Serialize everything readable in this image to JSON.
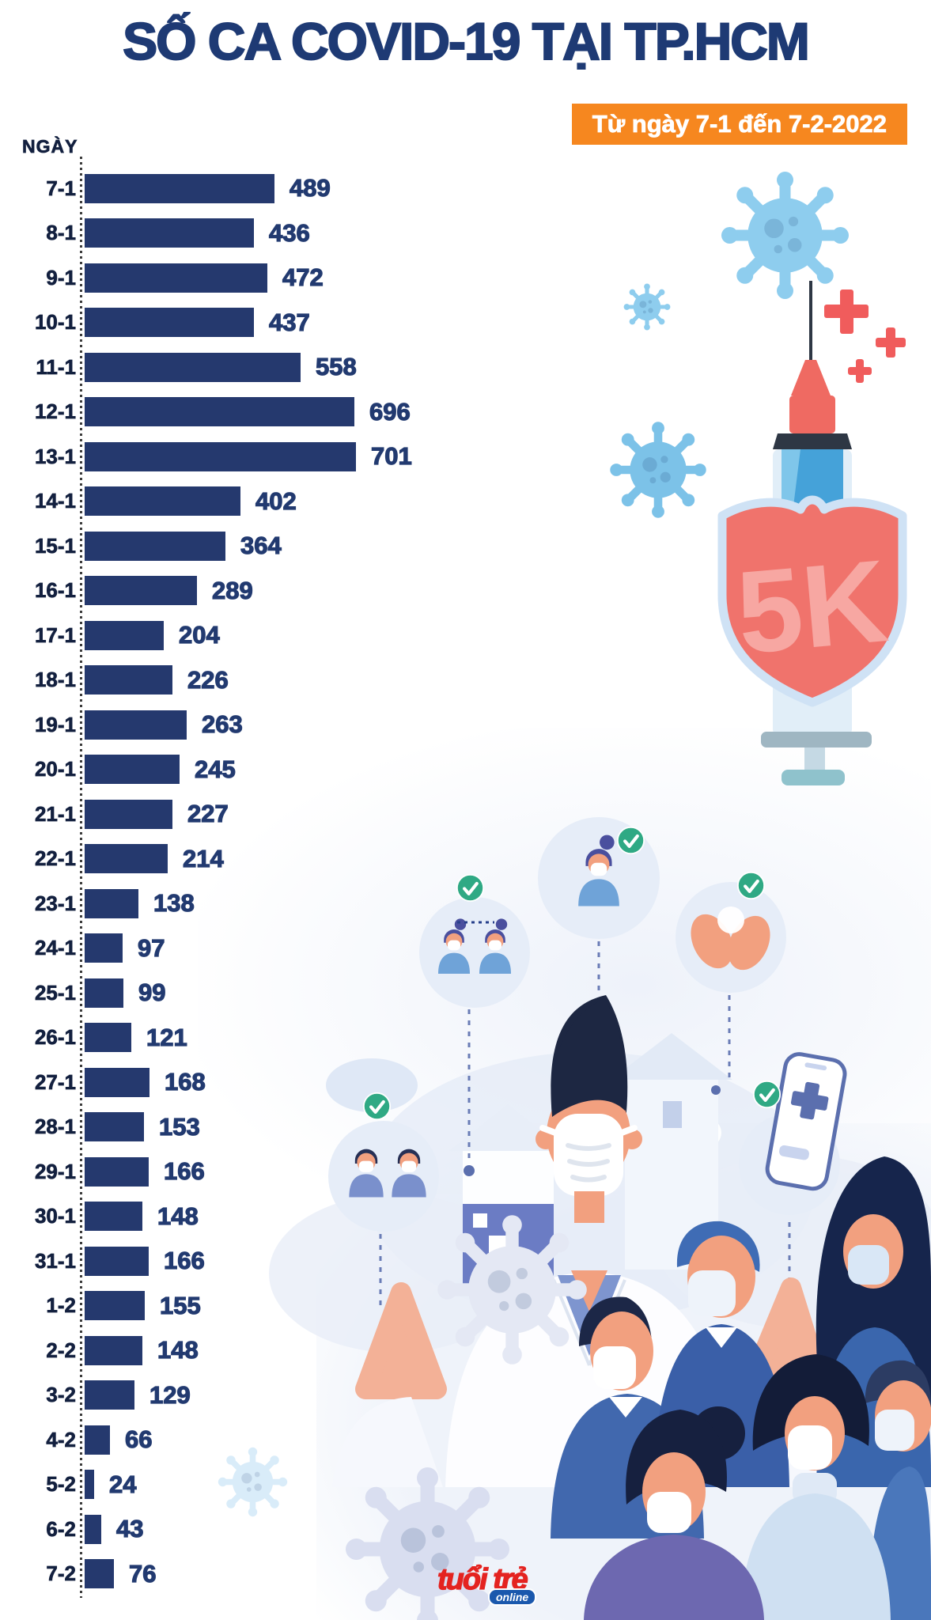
{
  "title": "SỐ CA COVID-19 TẠI TP.HCM",
  "banner": "Từ ngày 7-1 đến 7-2-2022",
  "axis_label": "NGÀY",
  "shield_label": "5K",
  "logo": {
    "main": "tuổi trẻ",
    "sub": "online"
  },
  "colors": {
    "navy_title": "#1e3a74",
    "bar_navy": "#25396e",
    "orange_banner": "#f6871f",
    "shield_red": "#f0736c",
    "virus_blue": "#8ecdee",
    "check_green": "#2fa984"
  },
  "chart_data": {
    "type": "bar",
    "orientation": "horizontal",
    "title": "SỐ CA COVID-19 TẠI TP.HCM",
    "subtitle": "Từ ngày 7-1 đến 7-2-2022",
    "ylabel": "NGÀY",
    "xlim": [
      0,
      701
    ],
    "grid": false,
    "value_labels": true,
    "bar_color": "#25396e",
    "categories": [
      "7-1",
      "8-1",
      "9-1",
      "10-1",
      "11-1",
      "12-1",
      "13-1",
      "14-1",
      "15-1",
      "16-1",
      "17-1",
      "18-1",
      "19-1",
      "20-1",
      "21-1",
      "22-1",
      "23-1",
      "24-1",
      "25-1",
      "26-1",
      "27-1",
      "28-1",
      "29-1",
      "30-1",
      "31-1",
      "1-2",
      "2-2",
      "3-2",
      "4-2",
      "5-2",
      "6-2",
      "7-2"
    ],
    "values": [
      489,
      436,
      472,
      437,
      558,
      696,
      701,
      402,
      364,
      289,
      204,
      226,
      263,
      245,
      227,
      214,
      138,
      97,
      99,
      121,
      168,
      153,
      166,
      148,
      166,
      155,
      148,
      129,
      66,
      24,
      43,
      76
    ]
  }
}
